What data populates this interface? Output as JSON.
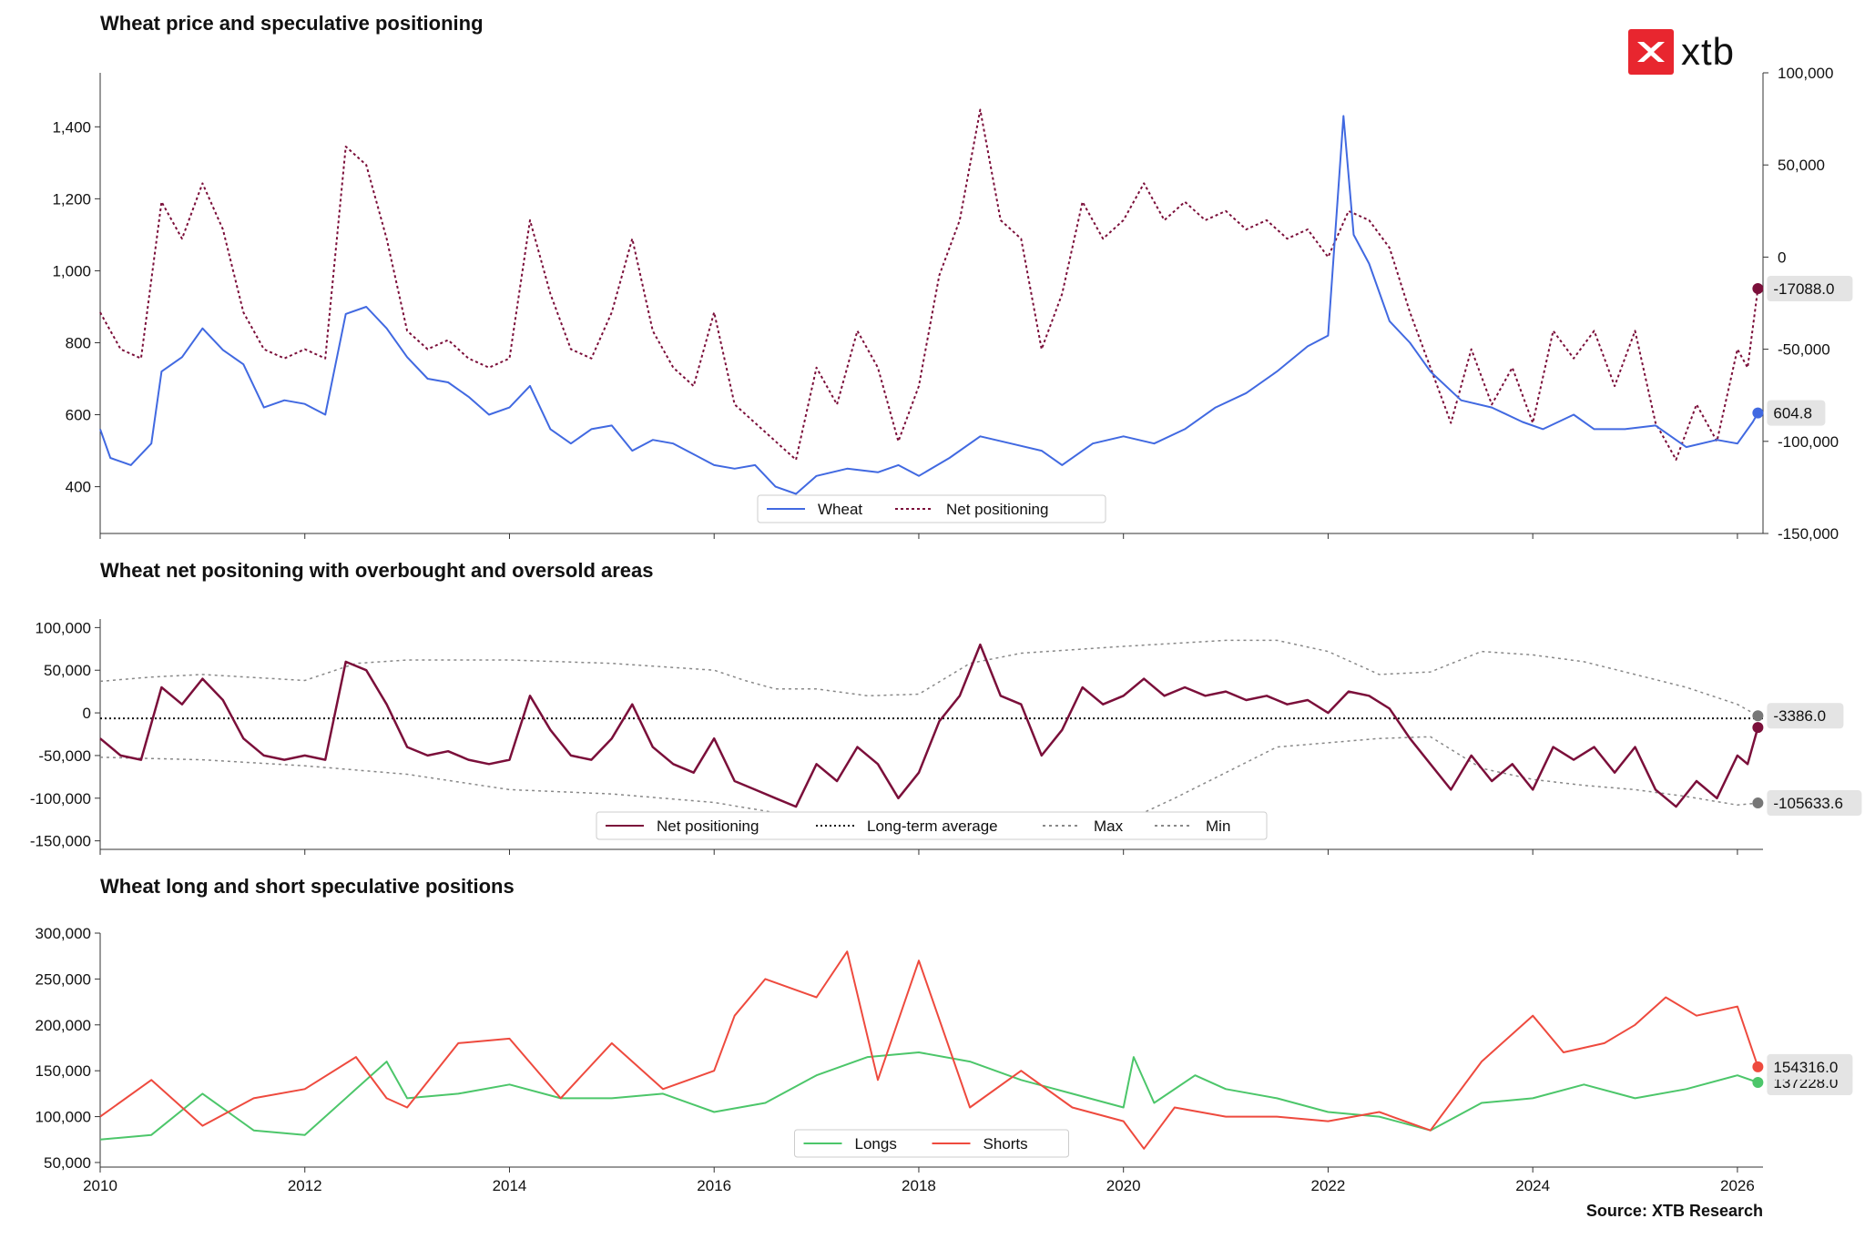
{
  "brand": {
    "logo_text": "xtb",
    "accent": "#e8262f"
  },
  "source": "Source: XTB Research",
  "colors": {
    "wheat": "#4169e1",
    "net": "#7b0f3a",
    "longs": "#4cc66a",
    "shorts": "#ee4a3e",
    "guide": "#888888"
  },
  "chart_data": [
    {
      "type": "line",
      "title": "Wheat price and speculative positioning",
      "left_axis": {
        "ylim": [
          270,
          1550
        ],
        "ticks": [
          "400",
          "600",
          "800",
          "1,000",
          "1,200",
          "1,400"
        ]
      },
      "right_axis": {
        "ylim": [
          -150000,
          100000
        ],
        "ticks": [
          "-150,000",
          "-100,000",
          "-50,000",
          "0",
          "50,000",
          "100,000"
        ]
      },
      "legend": {
        "placement": "bottom-center",
        "entries": [
          "Wheat",
          "Net positioning"
        ]
      },
      "series": [
        {
          "name": "Wheat",
          "axis": "left",
          "style": "solid",
          "x": [
            2010.0,
            2010.1,
            2010.3,
            2010.5,
            2010.6,
            2010.8,
            2011.0,
            2011.2,
            2011.4,
            2011.6,
            2011.8,
            2012.0,
            2012.2,
            2012.4,
            2012.6,
            2012.8,
            2013.0,
            2013.2,
            2013.4,
            2013.6,
            2013.8,
            2014.0,
            2014.2,
            2014.4,
            2014.6,
            2014.8,
            2015.0,
            2015.2,
            2015.4,
            2015.6,
            2015.8,
            2016.0,
            2016.2,
            2016.4,
            2016.6,
            2016.8,
            2017.0,
            2017.3,
            2017.6,
            2017.8,
            2018.0,
            2018.3,
            2018.6,
            2018.9,
            2019.2,
            2019.4,
            2019.7,
            2020.0,
            2020.3,
            2020.6,
            2020.9,
            2021.2,
            2021.5,
            2021.8,
            2022.0,
            2022.15,
            2022.25,
            2022.4,
            2022.6,
            2022.8,
            2023.0,
            2023.3,
            2023.6,
            2023.9,
            2024.1,
            2024.4,
            2024.6,
            2024.9,
            2025.2,
            2025.5,
            2025.8,
            2026.0,
            2026.15,
            2026.2
          ],
          "values": [
            560,
            480,
            460,
            520,
            720,
            760,
            840,
            780,
            740,
            620,
            640,
            630,
            600,
            880,
            900,
            840,
            760,
            700,
            690,
            650,
            600,
            620,
            680,
            560,
            520,
            560,
            570,
            500,
            530,
            520,
            490,
            460,
            450,
            460,
            400,
            380,
            430,
            450,
            440,
            460,
            430,
            480,
            540,
            520,
            500,
            460,
            520,
            540,
            520,
            560,
            620,
            660,
            720,
            790,
            820,
            1430,
            1100,
            1020,
            860,
            800,
            720,
            640,
            620,
            580,
            560,
            600,
            560,
            560,
            570,
            510,
            530,
            520,
            580,
            605
          ]
        },
        {
          "name": "Net positioning",
          "axis": "right",
          "style": "dotted",
          "x": [
            2010.0,
            2010.2,
            2010.4,
            2010.6,
            2010.8,
            2011.0,
            2011.2,
            2011.4,
            2011.6,
            2011.8,
            2012.0,
            2012.2,
            2012.4,
            2012.6,
            2012.8,
            2013.0,
            2013.2,
            2013.4,
            2013.6,
            2013.8,
            2014.0,
            2014.2,
            2014.4,
            2014.6,
            2014.8,
            2015.0,
            2015.2,
            2015.4,
            2015.6,
            2015.8,
            2016.0,
            2016.2,
            2016.4,
            2016.6,
            2016.8,
            2017.0,
            2017.2,
            2017.4,
            2017.6,
            2017.8,
            2018.0,
            2018.2,
            2018.4,
            2018.6,
            2018.8,
            2019.0,
            2019.2,
            2019.4,
            2019.6,
            2019.8,
            2020.0,
            2020.2,
            2020.4,
            2020.6,
            2020.8,
            2021.0,
            2021.2,
            2021.4,
            2021.6,
            2021.8,
            2022.0,
            2022.2,
            2022.4,
            2022.6,
            2022.8,
            2023.0,
            2023.2,
            2023.4,
            2023.6,
            2023.8,
            2024.0,
            2024.2,
            2024.4,
            2024.6,
            2024.8,
            2025.0,
            2025.2,
            2025.4,
            2025.6,
            2025.8,
            2026.0,
            2026.1,
            2026.2
          ],
          "values": [
            -30000,
            -50000,
            -55000,
            30000,
            10000,
            40000,
            15000,
            -30000,
            -50000,
            -55000,
            -50000,
            -55000,
            60000,
            50000,
            10000,
            -40000,
            -50000,
            -45000,
            -55000,
            -60000,
            -55000,
            20000,
            -20000,
            -50000,
            -55000,
            -30000,
            10000,
            -40000,
            -60000,
            -70000,
            -30000,
            -80000,
            -90000,
            -100000,
            -110000,
            -60000,
            -80000,
            -40000,
            -60000,
            -100000,
            -70000,
            -10000,
            20000,
            80000,
            20000,
            10000,
            -50000,
            -20000,
            30000,
            10000,
            20000,
            40000,
            20000,
            30000,
            20000,
            25000,
            15000,
            20000,
            10000,
            15000,
            0,
            25000,
            20000,
            5000,
            -30000,
            -60000,
            -90000,
            -50000,
            -80000,
            -60000,
            -90000,
            -40000,
            -55000,
            -40000,
            -70000,
            -40000,
            -90000,
            -110000,
            -80000,
            -100000,
            -50000,
            -60000,
            -17088
          ]
        }
      ],
      "end_labels": [
        "-17088.0",
        "604.8"
      ]
    },
    {
      "type": "line",
      "title": "Wheat net positoning with overbought and oversold areas",
      "ylim": [
        -160000,
        110000
      ],
      "ticks": [
        "-150,000",
        "-100,000",
        "-50,000",
        "0",
        "50,000",
        "100,000"
      ],
      "long_term_average": -6500,
      "legend": {
        "placement": "bottom-center",
        "entries": [
          "Net positioning",
          "Long-term average",
          "Max",
          "Min"
        ]
      },
      "series": [
        {
          "name": "Net positioning",
          "style": "solid",
          "from_chart": 0,
          "from_series": 1
        },
        {
          "name": "Max",
          "style": "dotted",
          "x": [
            2010.0,
            2010.5,
            2011.0,
            2012.0,
            2012.5,
            2013.0,
            2014.0,
            2015.0,
            2016.0,
            2016.3,
            2016.6,
            2017.0,
            2017.5,
            2018.0,
            2018.5,
            2019.0,
            2020.0,
            2021.0,
            2021.5,
            2022.0,
            2022.5,
            2023.0,
            2023.5,
            2024.0,
            2024.5,
            2025.0,
            2025.5,
            2026.0,
            2026.2
          ],
          "values": [
            37000,
            42000,
            45000,
            38000,
            58000,
            62000,
            62000,
            58000,
            50000,
            38000,
            28000,
            28000,
            20000,
            22000,
            58000,
            70000,
            78000,
            85000,
            85000,
            72000,
            45000,
            48000,
            72000,
            68000,
            60000,
            45000,
            30000,
            10000,
            -3386
          ]
        },
        {
          "name": "Min",
          "style": "dotted",
          "x": [
            2010.0,
            2011.0,
            2012.0,
            2013.0,
            2014.0,
            2015.0,
            2016.0,
            2017.0,
            2017.2,
            2017.5,
            2018.0,
            2019.0,
            2020.0,
            2020.5,
            2021.0,
            2021.5,
            2022.0,
            2022.5,
            2023.0,
            2023.5,
            2024.0,
            2024.5,
            2025.0,
            2025.5,
            2026.0,
            2026.2
          ],
          "values": [
            -52000,
            -55000,
            -62000,
            -72000,
            -90000,
            -95000,
            -105000,
            -125000,
            -128000,
            -128000,
            -128000,
            -128000,
            -128000,
            -100000,
            -70000,
            -40000,
            -35000,
            -30000,
            -28000,
            -65000,
            -78000,
            -85000,
            -90000,
            -98000,
            -108000,
            -105634
          ]
        }
      ],
      "end_labels": [
        "-3386.0",
        "-105633.6"
      ]
    },
    {
      "type": "line",
      "title": "Wheat long and short speculative positions",
      "ylim": [
        45000,
        300000
      ],
      "ticks": [
        "50,000",
        "100,000",
        "150,000",
        "200,000",
        "250,000",
        "300,000"
      ],
      "x_ticks": [
        "2010",
        "2012",
        "2014",
        "2016",
        "2018",
        "2020",
        "2022",
        "2024",
        "2026"
      ],
      "xlim": [
        2010,
        2026.25
      ],
      "legend": {
        "placement": "bottom-center",
        "entries": [
          "Longs",
          "Shorts"
        ]
      },
      "series": [
        {
          "name": "Longs",
          "style": "solid",
          "x": [
            2010.0,
            2010.5,
            2011.0,
            2011.5,
            2012.0,
            2012.5,
            2012.8,
            2013.0,
            2013.5,
            2014.0,
            2014.5,
            2015.0,
            2015.5,
            2016.0,
            2016.5,
            2017.0,
            2017.5,
            2018.0,
            2018.5,
            2019.0,
            2019.5,
            2020.0,
            2020.1,
            2020.3,
            2020.7,
            2021.0,
            2021.5,
            2022.0,
            2022.5,
            2023.0,
            2023.5,
            2024.0,
            2024.5,
            2025.0,
            2025.5,
            2026.0,
            2026.2
          ],
          "values": [
            75000,
            80000,
            125000,
            85000,
            80000,
            130000,
            160000,
            120000,
            125000,
            135000,
            120000,
            120000,
            125000,
            105000,
            115000,
            145000,
            165000,
            170000,
            160000,
            140000,
            125000,
            110000,
            165000,
            115000,
            145000,
            130000,
            120000,
            105000,
            100000,
            85000,
            115000,
            120000,
            135000,
            120000,
            130000,
            145000,
            137228
          ]
        },
        {
          "name": "Shorts",
          "style": "solid",
          "x": [
            2010.0,
            2010.5,
            2011.0,
            2011.5,
            2012.0,
            2012.5,
            2012.8,
            2013.0,
            2013.5,
            2014.0,
            2014.5,
            2015.0,
            2015.5,
            2016.0,
            2016.2,
            2016.5,
            2017.0,
            2017.3,
            2017.6,
            2018.0,
            2018.5,
            2019.0,
            2019.5,
            2020.0,
            2020.2,
            2020.5,
            2021.0,
            2021.5,
            2022.0,
            2022.5,
            2023.0,
            2023.5,
            2024.0,
            2024.3,
            2024.7,
            2025.0,
            2025.3,
            2025.6,
            2026.0,
            2026.2
          ],
          "values": [
            100000,
            140000,
            90000,
            120000,
            130000,
            165000,
            120000,
            110000,
            180000,
            185000,
            120000,
            180000,
            130000,
            150000,
            210000,
            250000,
            230000,
            280000,
            140000,
            270000,
            110000,
            150000,
            110000,
            95000,
            65000,
            110000,
            100000,
            100000,
            95000,
            105000,
            85000,
            160000,
            210000,
            170000,
            180000,
            200000,
            230000,
            210000,
            220000,
            154316
          ]
        }
      ],
      "end_labels": [
        "154316.0",
        "137228.0"
      ]
    }
  ]
}
